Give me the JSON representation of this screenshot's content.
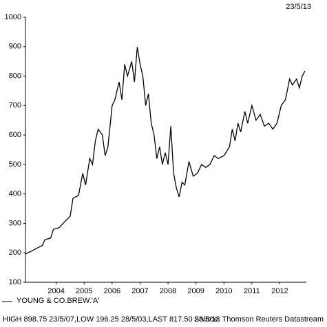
{
  "chart_data": {
    "type": "line",
    "date": "23/5/13",
    "series": [
      {
        "name": "YOUNG & CO.BREW.'A'",
        "color": "#000000",
        "x": [
          2003.4,
          2003.6,
          2003.8,
          2004.0,
          2004.1,
          2004.3,
          2004.4,
          2004.6,
          2004.8,
          2005.0,
          2005.1,
          2005.3,
          2005.45,
          2005.55,
          2005.7,
          2005.8,
          2005.9,
          2006.0,
          2006.15,
          2006.25,
          2006.35,
          2006.5,
          2006.6,
          2006.75,
          2006.85,
          2006.95,
          2007.05,
          2007.2,
          2007.3,
          2007.4,
          2007.5,
          2007.6,
          2007.7,
          2007.8,
          2007.9,
          2008.0,
          2008.1,
          2008.2,
          2008.3,
          2008.4,
          2008.5,
          2008.6,
          2008.7,
          2008.8,
          2008.9,
          2009.0,
          2009.1,
          2009.25,
          2009.4,
          2009.55,
          2009.7,
          2009.85,
          2010.0,
          2010.15,
          2010.3,
          2010.5,
          2010.7,
          2010.8,
          2010.9,
          2011.0,
          2011.1,
          2011.25,
          2011.35,
          2011.5,
          2011.65,
          2011.8,
          2011.95,
          2012.1,
          2012.25,
          2012.4,
          2012.55,
          2012.7,
          2012.85,
          2012.95,
          2013.1,
          2013.2,
          2013.3,
          2013.4
        ],
        "values": [
          196,
          205,
          215,
          225,
          245,
          250,
          280,
          285,
          305,
          325,
          385,
          395,
          470,
          430,
          520,
          500,
          580,
          620,
          600,
          530,
          560,
          700,
          720,
          780,
          720,
          840,
          800,
          850,
          780,
          898.75,
          840,
          800,
          700,
          740,
          640,
          600,
          520,
          560,
          500,
          540,
          500,
          630,
          470,
          420,
          390,
          440,
          430,
          510,
          460,
          470,
          500,
          490,
          500,
          530,
          520,
          530,
          560,
          620,
          580,
          640,
          610,
          680,
          640,
          700,
          650,
          670,
          630,
          640,
          620,
          640,
          700,
          720,
          790,
          770,
          790,
          760,
          800,
          817.5
        ]
      }
    ],
    "xlim": [
      2003.4,
      2013.4
    ],
    "xticks": [
      {
        "value": 2004.5,
        "label": "2004"
      },
      {
        "value": 2005.5,
        "label": "2005"
      },
      {
        "value": 2006.5,
        "label": "2006"
      },
      {
        "value": 2007.5,
        "label": "2007"
      },
      {
        "value": 2008.5,
        "label": "2008"
      },
      {
        "value": 2009.5,
        "label": "2009"
      },
      {
        "value": 2010.5,
        "label": "2010"
      },
      {
        "value": 2011.5,
        "label": "2011"
      },
      {
        "value": 2012.5,
        "label": "2012"
      }
    ],
    "ylim": [
      100,
      1000
    ],
    "yticks": [
      100,
      200,
      300,
      400,
      500,
      600,
      700,
      800,
      900,
      1000
    ],
    "footer": "HIGH 898.75 23/5/07,LOW 196.25 28/5/03,LAST 817.50 23/5/13",
    "source": "Source: Thomson Reuters Datastream"
  }
}
